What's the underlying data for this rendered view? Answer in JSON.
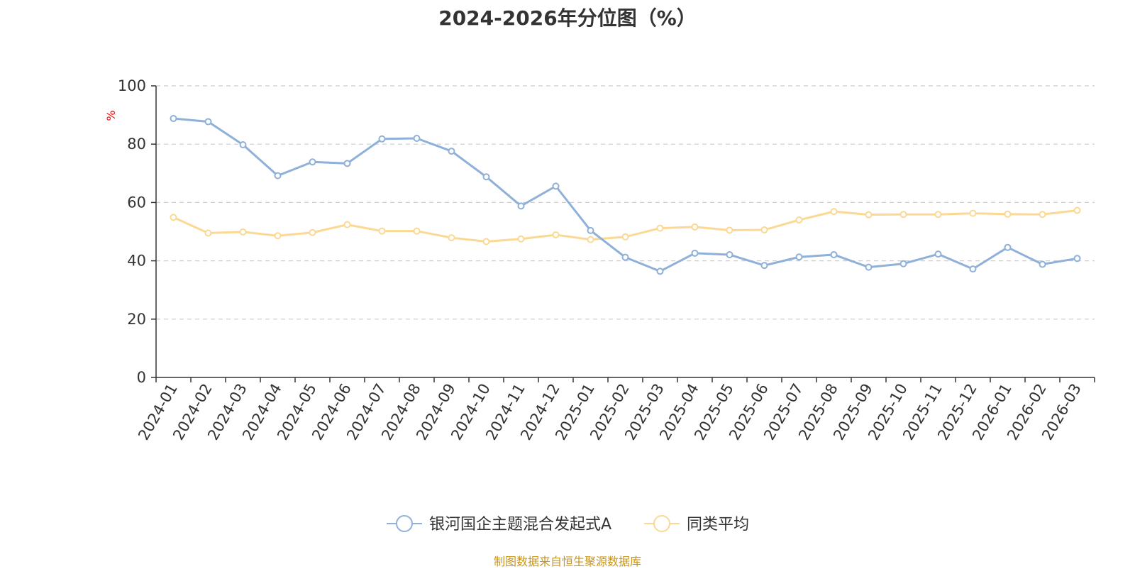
{
  "title": "2024-2026年分位图（%）",
  "footer": "制图数据来自恒生聚源数据库",
  "colors": {
    "series1": "#8fb0d9",
    "series2": "#fbd994",
    "grid": "#cccccc",
    "axis": "#333333",
    "unit": "#ff0000",
    "footer": "#c8951c"
  },
  "chart_data": {
    "type": "line",
    "title": "2024-2026年分位图（%）",
    "xlabel": "",
    "ylabel": "%",
    "ylim": [
      0,
      100
    ],
    "yticks": [
      0,
      20,
      40,
      60,
      80,
      100
    ],
    "grid": true,
    "legend_position": "bottom-center",
    "categories": [
      "2024-01",
      "2024-02",
      "2024-03",
      "2024-04",
      "2024-05",
      "2024-06",
      "2024-07",
      "2024-08",
      "2024-09",
      "2024-10",
      "2024-11",
      "2024-12",
      "2025-01",
      "2025-02",
      "2025-03",
      "2025-04",
      "2025-05",
      "2025-06",
      "2025-07",
      "2025-08",
      "2025-09",
      "2025-10",
      "2025-11",
      "2025-12",
      "2026-01",
      "2026-02",
      "2026-03"
    ],
    "series": [
      {
        "name": "银河国企主题混合发起式A",
        "values": [
          88.8,
          87.7,
          79.8,
          69.2,
          73.9,
          73.4,
          81.8,
          82.0,
          77.6,
          68.8,
          58.8,
          65.6,
          50.4,
          41.2,
          36.4,
          42.6,
          42.1,
          38.4,
          41.3,
          42.1,
          37.8,
          39.0,
          42.3,
          37.2,
          44.6,
          38.8,
          40.8
        ]
      },
      {
        "name": "同类平均",
        "values": [
          54.9,
          49.5,
          49.9,
          48.6,
          49.7,
          52.4,
          50.2,
          50.2,
          47.9,
          46.6,
          47.5,
          48.9,
          47.3,
          48.2,
          51.2,
          51.6,
          50.5,
          50.6,
          54.0,
          56.9,
          55.8,
          55.9,
          55.9,
          56.3,
          56.0,
          55.9,
          57.3
        ]
      }
    ]
  }
}
